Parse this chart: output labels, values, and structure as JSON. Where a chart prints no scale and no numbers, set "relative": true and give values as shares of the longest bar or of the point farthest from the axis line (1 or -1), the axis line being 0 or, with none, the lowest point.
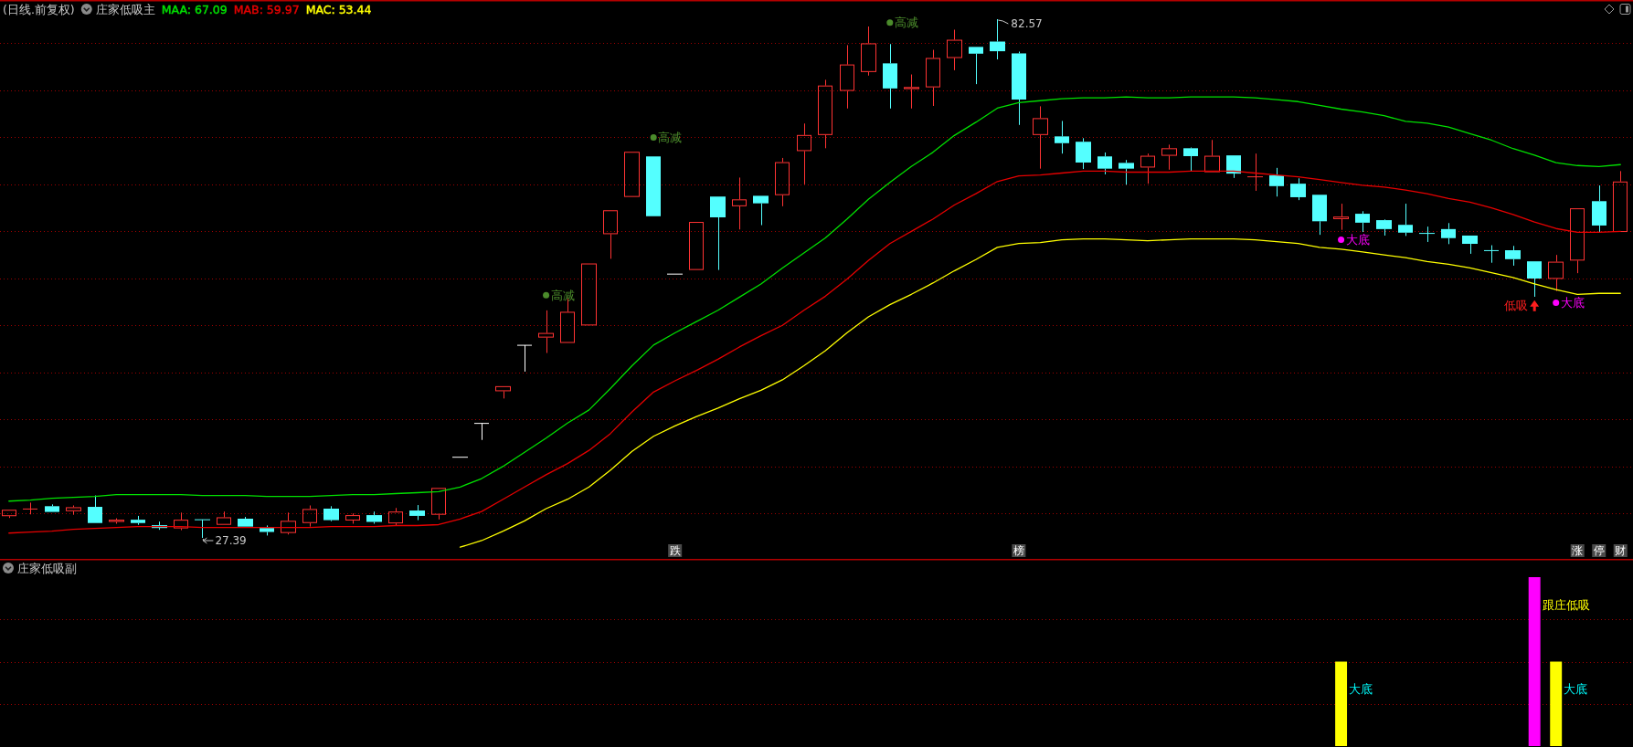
{
  "chart_data": [
    {
      "type": "candlestick",
      "title": "(日线.前复权)",
      "subtitle": "庄家低吸主",
      "categories": [
        null,
        null,
        null,
        null,
        null,
        null,
        null,
        null,
        null,
        null,
        null,
        null,
        null,
        null,
        null,
        null,
        null,
        null,
        null,
        null,
        null,
        null,
        null,
        null,
        null,
        null,
        null,
        null,
        null,
        null,
        null,
        "跌",
        null,
        null,
        null,
        null,
        null,
        null,
        null,
        null,
        null,
        null,
        null,
        null,
        null,
        null,
        null,
        "榜",
        null,
        null,
        null,
        null,
        null,
        null,
        null,
        null,
        null,
        null,
        null,
        null,
        null,
        null,
        null,
        null,
        null,
        null,
        null,
        null,
        null,
        null,
        null,
        null,
        null,
        "涨",
        "停",
        "财"
      ],
      "ohlc": [
        [
          29.7,
          30.38,
          29.51,
          30.38
        ],
        [
          30.46,
          31.14,
          29.89,
          30.46
        ],
        [
          30.76,
          30.95,
          30.15,
          30.15
        ],
        [
          30.23,
          30.84,
          29.85,
          30.65
        ],
        [
          30.69,
          31.9,
          28.97,
          28.97
        ],
        [
          29.09,
          29.47,
          28.9,
          29.32
        ],
        [
          29.32,
          29.73,
          28.78,
          28.97
        ],
        [
          28.74,
          29.12,
          28.25,
          28.44
        ],
        [
          28.4,
          30.08,
          28.21,
          29.32
        ],
        [
          29.32,
          29.32,
          27.39,
          29.32
        ],
        [
          28.78,
          30.19,
          28.78,
          29.58
        ],
        [
          29.43,
          29.62,
          28.59,
          28.59
        ],
        [
          28.44,
          28.71,
          27.64,
          28.02
        ],
        [
          27.91,
          30.08,
          27.75,
          29.2
        ],
        [
          28.97,
          30.84,
          28.59,
          30.46
        ],
        [
          30.5,
          30.76,
          29.16,
          29.28
        ],
        [
          29.24,
          30.0,
          28.9,
          29.81
        ],
        [
          29.81,
          30.19,
          28.9,
          29.09
        ],
        [
          28.93,
          30.57,
          28.74,
          30.19
        ],
        [
          30.3,
          30.88,
          29.28,
          29.73
        ],
        [
          29.85,
          32.7,
          29.35,
          32.7
        ],
        [
          35.97,
          35.97,
          35.97,
          35.97
        ],
        [
          39.57,
          39.57,
          37.81,
          39.57
        ],
        [
          42.99,
          43.53,
          42.22,
          43.53
        ],
        [
          47.88,
          47.88,
          45.08,
          47.88
        ],
        [
          48.7,
          51.59,
          47.06,
          49.19
        ],
        [
          48.13,
          52.96,
          48.13,
          51.44
        ],
        [
          49.99,
          56.58,
          49.99,
          56.58
        ],
        [
          59.7,
          62.24,
          57.08,
          62.24
        ],
        [
          63.66,
          68.46,
          63.66,
          68.46
        ],
        [
          67.97,
          67.97,
          61.61,
          61.61
        ],
        [
          55.45,
          55.45,
          55.45,
          55.45
        ],
        [
          55.89,
          61.0,
          55.89,
          61.0
        ],
        [
          63.7,
          63.7,
          55.89,
          61.49
        ],
        [
          62.67,
          65.72,
          60.2,
          63.4
        ],
        [
          63.78,
          63.78,
          60.66,
          62.98
        ],
        [
          63.85,
          67.81,
          62.67,
          67.36
        ],
        [
          68.54,
          71.47,
          65.0,
          70.25
        ],
        [
          70.25,
          76.12,
          68.84,
          75.51
        ],
        [
          74.94,
          79.81,
          73.07,
          77.75
        ],
        [
          76.95,
          81.79,
          76.57,
          80.0
        ],
        [
          77.87,
          79.92,
          73.07,
          75.2
        ],
        [
          75.13,
          76.69,
          73.07,
          75.35
        ],
        [
          75.32,
          79.31,
          73.34,
          78.44
        ],
        [
          78.44,
          81.45,
          77.14,
          80.38
        ],
        [
          79.62,
          79.62,
          75.66,
          78.9
        ],
        [
          80.19,
          82.57,
          78.29,
          79.16
        ],
        [
          78.93,
          79.12,
          71.32,
          74.02
        ],
        [
          70.25,
          73.3,
          66.67,
          72.04
        ],
        [
          70.1,
          71.74,
          68.27,
          69.38
        ],
        [
          69.53,
          69.91,
          66.63,
          67.32
        ],
        [
          67.97,
          68.39,
          66.06,
          66.67
        ],
        [
          67.28,
          67.59,
          64.96,
          66.67
        ],
        [
          66.79,
          68.27,
          65.07,
          68.04
        ],
        [
          68.04,
          69.22,
          66.56,
          68.84
        ],
        [
          68.84,
          68.92,
          66.41,
          68.0
        ],
        [
          66.29,
          69.72,
          66.29,
          68.04
        ],
        [
          68.08,
          68.08,
          65.68,
          66.14
        ],
        [
          65.8,
          68.27,
          64.31,
          65.8
        ],
        [
          65.95,
          66.75,
          63.7,
          64.81
        ],
        [
          65.07,
          65.64,
          63.32,
          63.63
        ],
        [
          63.89,
          63.89,
          59.63,
          61.07
        ],
        [
          61.3,
          62.94,
          60.16,
          61.57
        ],
        [
          61.87,
          62.14,
          59.93,
          60.92
        ],
        [
          61.19,
          61.26,
          59.55,
          60.24
        ],
        [
          60.69,
          62.94,
          59.51,
          59.86
        ],
        [
          59.78,
          60.5,
          58.87,
          59.78
        ],
        [
          60.24,
          60.88,
          58.64,
          59.28
        ],
        [
          59.55,
          59.55,
          57.61,
          58.67
        ],
        [
          57.95,
          58.52,
          56.66,
          57.95
        ],
        [
          57.99,
          58.45,
          56.35,
          57.04
        ],
        [
          56.81,
          56.81,
          53.04,
          54.98
        ],
        [
          54.94,
          57.49,
          53.65,
          56.77
        ],
        [
          56.89,
          62.45,
          55.55,
          62.45
        ],
        [
          63.21,
          64.88,
          59.89,
          60.62
        ],
        [
          59.93,
          66.41,
          59.93,
          65.3
        ]
      ],
      "value_labels": [
        null,
        null,
        null,
        null,
        null,
        null,
        null,
        null,
        null,
        "27.39",
        null,
        null,
        null,
        null,
        null,
        null,
        null,
        null,
        null,
        null,
        null,
        null,
        null,
        null,
        null,
        null,
        null,
        null,
        null,
        null,
        null,
        null,
        null,
        null,
        null,
        null,
        null,
        null,
        null,
        null,
        null,
        null,
        null,
        null,
        null,
        null,
        "82.57",
        null,
        null,
        null,
        null,
        null,
        null,
        null,
        null,
        null,
        null,
        null,
        null,
        null,
        null,
        null,
        null,
        null,
        null,
        null,
        null,
        null,
        null,
        null,
        null,
        null,
        null,
        null,
        null,
        null
      ],
      "colors": [
        "#ff3333",
        "#ff3333",
        "#54ffff",
        "#ff3333",
        "#54ffff",
        "#ff3333",
        "#54ffff",
        "#54ffff",
        "#ff3333",
        "#54ffff",
        "#ff3333",
        "#54ffff",
        "#54ffff",
        "#ff3333",
        "#ff3333",
        "#54ffff",
        "#ff3333",
        "#54ffff",
        "#ff3333",
        "#54ffff",
        "#ff3333",
        "#ffffff",
        "#ffffff",
        "#ff3333",
        "#ffffff",
        "#ff3333",
        "#ff3333",
        "#ff3333",
        "#ff3333",
        "#ff3333",
        "#54ffff",
        "#ffffff",
        "#ff3333",
        "#54ffff",
        "#ff3333",
        "#54ffff",
        "#ff3333",
        "#ff3333",
        "#ff3333",
        "#ff3333",
        "#ff3333",
        "#54ffff",
        "#ff3333",
        "#ff3333",
        "#ff3333",
        "#54ffff",
        "#54ffff",
        "#54ffff",
        "#ff3333",
        "#54ffff",
        "#54ffff",
        "#54ffff",
        "#54ffff",
        "#ff3333",
        "#ff3333",
        "#54ffff",
        "#ff3333",
        "#54ffff",
        "#ff3333",
        "#54ffff",
        "#54ffff",
        "#54ffff",
        "#ff3333",
        "#54ffff",
        "#54ffff",
        "#54ffff",
        "#54ffff",
        "#54ffff",
        "#54ffff",
        "#54ffff",
        "#54ffff",
        "#54ffff",
        "#ff3333",
        "#ff3333",
        "#54ffff",
        "#ff3333"
      ],
      "series": [
        {
          "name": "MAA: 67.09",
          "type": "line",
          "color": "#00e000",
          "values": [
            31.3,
            31.4,
            31.6,
            31.7,
            31.8,
            32.0,
            32.0,
            32.0,
            32.0,
            31.9,
            31.9,
            31.9,
            31.8,
            31.8,
            31.8,
            31.9,
            32.0,
            32.0,
            32.1,
            32.2,
            32.3,
            32.8,
            33.7,
            35.0,
            36.5,
            38.0,
            39.6,
            41.0,
            43.3,
            45.7,
            47.9,
            49.2,
            50.4,
            51.6,
            53.0,
            54.4,
            56.1,
            57.7,
            59.3,
            61.3,
            63.4,
            65.2,
            66.9,
            68.4,
            70.2,
            71.6,
            73.1,
            73.7,
            73.9,
            74.1,
            74.2,
            74.2,
            74.3,
            74.2,
            74.2,
            74.3,
            74.3,
            74.3,
            74.2,
            74.0,
            73.8,
            73.4,
            73.0,
            72.7,
            72.3,
            71.7,
            71.5,
            71.1,
            70.4,
            69.7,
            68.8,
            68.1,
            67.3,
            67.0,
            66.9,
            67.1
          ]
        },
        {
          "name": "MAB: 59.97",
          "type": "line",
          "color": "#e60000",
          "values": [
            27.9,
            28.0,
            28.1,
            28.3,
            28.4,
            28.5,
            28.6,
            28.6,
            28.6,
            28.5,
            28.5,
            28.5,
            28.5,
            28.5,
            28.5,
            28.6,
            28.6,
            28.6,
            28.7,
            28.7,
            28.8,
            29.4,
            30.2,
            31.5,
            32.8,
            34.1,
            35.3,
            36.7,
            38.5,
            40.8,
            42.9,
            44.1,
            45.2,
            46.4,
            47.7,
            48.9,
            50.0,
            51.6,
            53.1,
            54.9,
            56.9,
            58.7,
            60.0,
            61.3,
            62.8,
            64.0,
            65.3,
            65.9,
            66.0,
            66.2,
            66.4,
            66.4,
            66.3,
            66.3,
            66.3,
            66.4,
            66.4,
            66.4,
            66.2,
            66.0,
            65.8,
            65.5,
            65.2,
            64.9,
            64.7,
            64.4,
            64.0,
            63.5,
            63.1,
            62.5,
            61.8,
            61.0,
            60.3,
            59.9,
            59.9,
            60.0
          ]
        },
        {
          "name": "MAC: 53.44",
          "type": "line",
          "color": "#ffff00",
          "values": [
            null,
            null,
            null,
            null,
            null,
            null,
            null,
            null,
            null,
            null,
            null,
            null,
            null,
            null,
            null,
            null,
            null,
            null,
            null,
            null,
            null,
            26.4,
            27.1,
            28.1,
            29.2,
            30.5,
            31.5,
            32.8,
            34.6,
            36.6,
            38.2,
            39.3,
            40.3,
            41.2,
            42.2,
            43.1,
            44.2,
            45.7,
            47.3,
            49.2,
            50.9,
            52.2,
            53.3,
            54.5,
            55.8,
            57.0,
            58.3,
            58.7,
            58.8,
            59.1,
            59.2,
            59.2,
            59.1,
            59.0,
            59.1,
            59.2,
            59.2,
            59.2,
            59.1,
            58.9,
            58.7,
            58.3,
            58.1,
            57.8,
            57.5,
            57.2,
            56.8,
            56.5,
            56.1,
            55.6,
            55.1,
            54.4,
            53.8,
            53.3,
            53.4,
            53.4
          ]
        },
        {
          "name": "高减",
          "type": "scatter",
          "marker": "circle",
          "color": "#4b8b2b",
          "values": [
            null,
            null,
            null,
            null,
            null,
            null,
            null,
            null,
            null,
            null,
            null,
            null,
            null,
            null,
            null,
            null,
            null,
            null,
            null,
            null,
            null,
            null,
            null,
            null,
            null,
            53.2,
            null,
            null,
            null,
            null,
            70.0,
            null,
            null,
            null,
            null,
            null,
            null,
            null,
            null,
            null,
            null,
            82.2,
            null,
            null,
            null,
            null,
            null,
            null,
            null,
            null,
            null,
            null,
            null,
            null,
            null,
            null,
            null,
            null,
            null,
            null,
            null,
            null,
            null,
            null,
            null,
            null,
            null,
            null,
            null,
            null,
            null,
            null,
            null,
            null,
            null,
            null
          ]
        },
        {
          "name": "大底",
          "type": "scatter",
          "marker": "circle",
          "color": "#ff00ff",
          "values": [
            null,
            null,
            null,
            null,
            null,
            null,
            null,
            null,
            null,
            null,
            null,
            null,
            null,
            null,
            null,
            null,
            null,
            null,
            null,
            null,
            null,
            null,
            null,
            null,
            null,
            null,
            null,
            null,
            null,
            null,
            null,
            null,
            null,
            null,
            null,
            null,
            null,
            null,
            null,
            null,
            null,
            null,
            null,
            null,
            null,
            null,
            null,
            null,
            null,
            null,
            null,
            null,
            null,
            null,
            null,
            null,
            null,
            null,
            null,
            null,
            null,
            null,
            59.1,
            null,
            null,
            null,
            null,
            null,
            null,
            null,
            null,
            null,
            52.4,
            null,
            null,
            null
          ]
        },
        {
          "name": "低吸",
          "type": "scatter",
          "marker": "triangle",
          "color": "#ff1e1e",
          "values": [
            null,
            null,
            null,
            null,
            null,
            null,
            null,
            null,
            null,
            null,
            null,
            null,
            null,
            null,
            null,
            null,
            null,
            null,
            null,
            null,
            null,
            null,
            null,
            null,
            null,
            null,
            null,
            null,
            null,
            null,
            null,
            null,
            null,
            null,
            null,
            null,
            null,
            null,
            null,
            null,
            null,
            null,
            null,
            null,
            null,
            null,
            null,
            null,
            null,
            null,
            null,
            null,
            null,
            null,
            null,
            null,
            null,
            null,
            null,
            null,
            null,
            null,
            null,
            null,
            null,
            null,
            null,
            null,
            null,
            null,
            null,
            52.1,
            null,
            null,
            null,
            null
          ]
        }
      ],
      "yticks": [
        {
          "value": 30,
          "label": null
        },
        {
          "value": 35,
          "label": null
        },
        {
          "value": 40,
          "label": null
        },
        {
          "value": 45,
          "label": null
        },
        {
          "value": 50,
          "label": null
        },
        {
          "value": 55,
          "label": null
        },
        {
          "value": 60,
          "label": null
        },
        {
          "value": 65,
          "label": null
        },
        {
          "value": 70,
          "label": null
        },
        {
          "value": 75,
          "label": null
        },
        {
          "value": 80,
          "label": null
        }
      ],
      "grid": "y",
      "legend": "top left",
      "tick_labels": "x"
    },
    {
      "type": "bar",
      "title": "庄家低吸副",
      "relative": true,
      "stacked": true,
      "categories": [
        null,
        null,
        null,
        null,
        null,
        null,
        null,
        null,
        null,
        null,
        null,
        null,
        null,
        null,
        null,
        null,
        null,
        null,
        null,
        null,
        null,
        null,
        null,
        null,
        null,
        null,
        null,
        null,
        null,
        null,
        null,
        null,
        null,
        null,
        null,
        null,
        null,
        null,
        null,
        null,
        null,
        null,
        null,
        null,
        null,
        null,
        null,
        null,
        null,
        null,
        null,
        null,
        null,
        null,
        null,
        null,
        null,
        null,
        null,
        null,
        null,
        null,
        null,
        null,
        null,
        null,
        null,
        null,
        null,
        null,
        null,
        null,
        null,
        null,
        null,
        null
      ],
      "series": [
        {
          "name": "大底",
          "color": "#ffff00",
          "values": [
            null,
            null,
            null,
            null,
            null,
            null,
            null,
            null,
            null,
            null,
            null,
            null,
            null,
            null,
            null,
            null,
            null,
            null,
            null,
            null,
            null,
            null,
            null,
            null,
            null,
            null,
            null,
            null,
            null,
            null,
            null,
            null,
            null,
            null,
            null,
            null,
            null,
            null,
            null,
            null,
            null,
            null,
            null,
            null,
            null,
            null,
            null,
            null,
            null,
            null,
            null,
            null,
            null,
            null,
            null,
            null,
            null,
            null,
            null,
            null,
            null,
            null,
            0.5,
            null,
            null,
            null,
            null,
            null,
            null,
            null,
            null,
            null,
            0.5,
            null,
            null,
            null
          ]
        },
        {
          "name": "跟庄低吸",
          "color": "#ff00ff",
          "values": [
            null,
            null,
            null,
            null,
            null,
            null,
            null,
            null,
            null,
            null,
            null,
            null,
            null,
            null,
            null,
            null,
            null,
            null,
            null,
            null,
            null,
            null,
            null,
            null,
            null,
            null,
            null,
            null,
            null,
            null,
            null,
            null,
            null,
            null,
            null,
            null,
            null,
            null,
            null,
            null,
            null,
            null,
            null,
            null,
            null,
            null,
            null,
            null,
            null,
            null,
            null,
            null,
            null,
            null,
            null,
            null,
            null,
            null,
            null,
            null,
            null,
            null,
            null,
            null,
            null,
            null,
            null,
            null,
            null,
            null,
            null,
            1,
            null,
            null,
            null,
            null
          ]
        }
      ],
      "ref_lines": [
        {
          "axis": "y",
          "value": 0.25,
          "color": "#a00000",
          "line_style": "dotted"
        },
        {
          "axis": "y",
          "value": 0.5,
          "color": "#a00000",
          "line_style": "dotted"
        },
        {
          "axis": "y",
          "value": 0.75,
          "color": "#a00000",
          "line_style": "dotted"
        }
      ]
    }
  ]
}
